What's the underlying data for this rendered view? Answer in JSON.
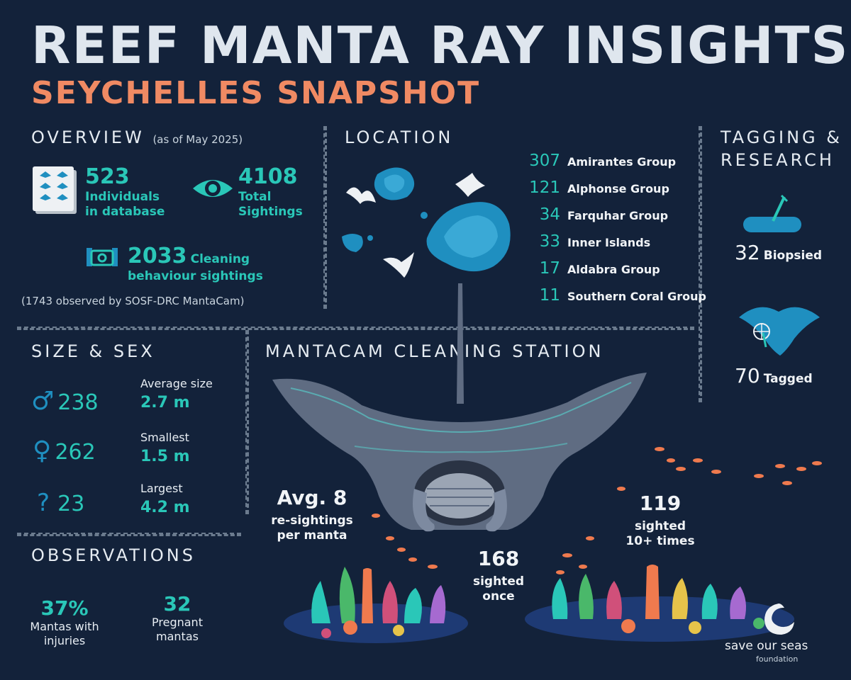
{
  "header": {
    "title": "REEF MANTA RAY INSIGHTS",
    "subtitle": "SEYCHELLES SNAPSHOT"
  },
  "overview": {
    "heading": "OVERVIEW",
    "as_of": "(as of May 2025)",
    "individuals_value": "523",
    "individuals_label_1": "Individuals",
    "individuals_label_2": "in database",
    "sightings_value": "4108",
    "sightings_label_1": "Total",
    "sightings_label_2": "Sightings",
    "cleaning_value": "2033",
    "cleaning_label_1": "Cleaning",
    "cleaning_label_2": "behaviour sightings",
    "mantacam_note": "(1743 observed by SOSF-DRC MantaCam)"
  },
  "location": {
    "heading": "LOCATION",
    "groups": [
      {
        "count": "307",
        "name": "Amirantes Group"
      },
      {
        "count": "121",
        "name": "Alphonse Group"
      },
      {
        "count": "34",
        "name": "Farquhar Group"
      },
      {
        "count": "33",
        "name": "Inner Islands"
      },
      {
        "count": "17",
        "name": "Aldabra Group"
      },
      {
        "count": "11",
        "name": "Southern Coral Group"
      }
    ]
  },
  "tagging": {
    "heading_1": "TAGGING &",
    "heading_2": "RESEARCH",
    "biopsied_value": "32",
    "biopsied_label": "Biopsied",
    "tagged_value": "70",
    "tagged_label": "Tagged"
  },
  "size_sex": {
    "heading": "SIZE & SEX",
    "male_symbol": "♂",
    "male_count": "238",
    "female_symbol": "♀",
    "female_count": "262",
    "unknown_symbol": "?",
    "unknown_count": "23",
    "avg_label": "Average size",
    "avg_value": "2.7 m",
    "smallest_label": "Smallest",
    "smallest_value": "1.5 m",
    "largest_label": "Largest",
    "largest_value": "4.2 m"
  },
  "observations": {
    "heading": "OBSERVATIONS",
    "injuries_value": "37%",
    "injuries_label_1": "Mantas with",
    "injuries_label_2": "injuries",
    "pregnant_value": "32",
    "pregnant_label_1": "Pregnant",
    "pregnant_label_2": "mantas"
  },
  "mantacam": {
    "heading": "MANTACAM CLEANING STATION",
    "avg_value": "Avg. 8",
    "avg_label_1": "re-sightings",
    "avg_label_2": "per manta",
    "once_value": "168",
    "once_label_1": "sighted",
    "once_label_2": "once",
    "ten_value": "119",
    "ten_label_1": "sighted",
    "ten_label_2": "10+ times"
  },
  "logo": {
    "name": "save our seas",
    "sub": "foundation"
  },
  "colors": {
    "background": "#13223a",
    "accent_teal": "#2ac7b8",
    "accent_orange": "#f08a63",
    "island_blue": "#1f8fc0"
  }
}
